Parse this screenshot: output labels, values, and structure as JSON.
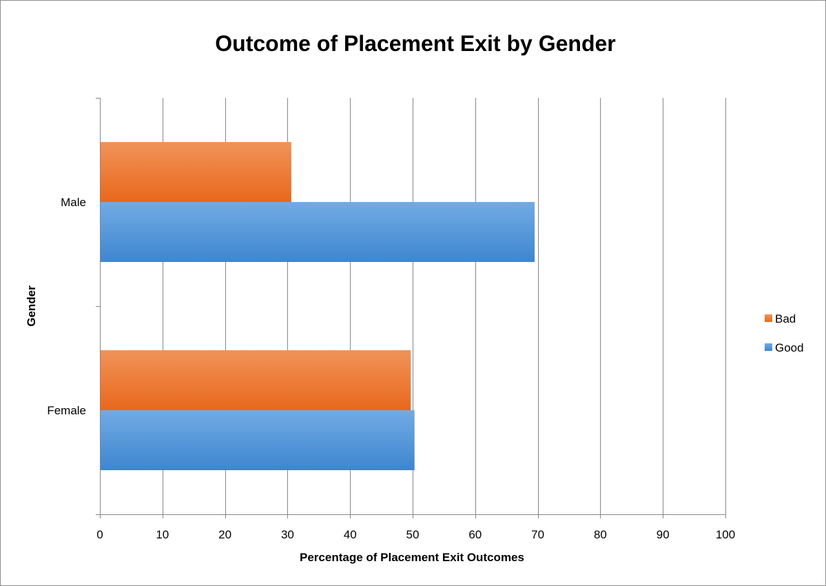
{
  "chart_data": {
    "type": "bar",
    "orientation": "horizontal",
    "title": "Outcome of Placement Exit by Gender",
    "xlabel": "Percentage of Placement Exit Outcomes",
    "ylabel": "Gender",
    "xlim": [
      0,
      100
    ],
    "xticks": [
      "0",
      "10",
      "20",
      "30",
      "40",
      "50",
      "60",
      "70",
      "80",
      "90",
      "100"
    ],
    "categories": [
      "Female",
      "Male"
    ],
    "series": [
      {
        "name": "Good",
        "values": [
          50.3,
          69.5
        ],
        "color": "#4a8fd4"
      },
      {
        "name": "Bad",
        "values": [
          49.7,
          30.6
        ],
        "color": "#ec7028"
      }
    ],
    "legend_position": "right",
    "gridlines": "vertical"
  }
}
